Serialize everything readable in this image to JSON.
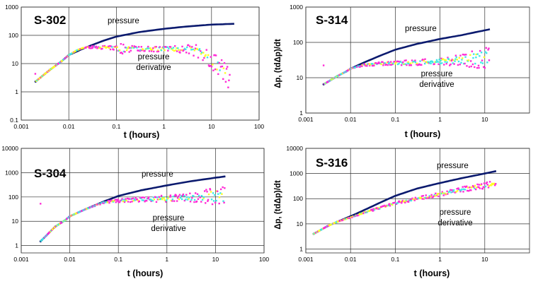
{
  "figure": {
    "colors": {
      "pressure": "#0b1a6e",
      "derivative_magenta": "#ff2bd6",
      "derivative_yellow": "#ffff22",
      "derivative_cyan": "#3ee8e8",
      "grid": "#333333"
    }
  },
  "chart_data": [
    {
      "type": "scatter",
      "title": "S-302",
      "xlabel": "t (hours)",
      "ylabel": "",
      "xscale": "log",
      "yscale": "log",
      "xlim": [
        0.001,
        100
      ],
      "ylim": [
        0.1,
        1000
      ],
      "xticks": [
        "0.001",
        "0.01",
        "0.1",
        "1",
        "10",
        "100"
      ],
      "yticks": [
        "0.1",
        "1",
        "10",
        "100",
        "1000"
      ],
      "grid": true,
      "annotations": [
        {
          "text": "pressure"
        },
        {
          "text": "pressure derivative"
        }
      ],
      "series": [
        {
          "role": "pressure",
          "color": "#0b1a6e",
          "x": [
            0.002,
            0.004,
            0.007,
            0.01,
            0.02,
            0.05,
            0.1,
            0.3,
            1,
            3,
            10,
            30
          ],
          "y": [
            2.3,
            6,
            12,
            20,
            34,
            62,
            90,
            130,
            170,
            205,
            240,
            255
          ]
        },
        {
          "role": "pressure derivative",
          "color": "#ffff22",
          "x": [
            0.002,
            0.004,
            0.007,
            0.01,
            0.015,
            0.02,
            0.03,
            0.06,
            0.1,
            0.12,
            0.3,
            1,
            3,
            5,
            8,
            12,
            16,
            20,
            25
          ],
          "y": [
            2.3,
            6,
            12,
            20,
            30,
            36,
            38,
            37,
            35,
            34,
            33,
            33,
            32,
            28,
            18,
            10,
            6,
            4,
            2
          ],
          "spread": [
            0,
            0,
            0,
            0,
            0,
            0,
            0.04,
            0.06,
            0.08,
            0.2,
            0.08,
            0.1,
            0.15,
            0.22,
            0.28,
            0.32,
            0.36,
            0.38,
            0.4
          ]
        }
      ]
    },
    {
      "type": "scatter",
      "title": "S-314",
      "xlabel": "t (hours)",
      "ylabel": "Δp, (tdΔp)/dt",
      "xscale": "log",
      "yscale": "log",
      "xlim": [
        0.001,
        100
      ],
      "ylim": [
        1,
        1000
      ],
      "xticks": [
        "0.001",
        "0.01",
        "0.1",
        "1",
        "10"
      ],
      "yticks": [
        "1",
        "10",
        "100",
        "1000"
      ],
      "grid": true,
      "annotations": [
        {
          "text": "pressure"
        },
        {
          "text": "pressure derivative"
        }
      ],
      "series": [
        {
          "role": "pressure",
          "color": "#0b1a6e",
          "x": [
            0.0025,
            0.005,
            0.008,
            0.01,
            0.02,
            0.05,
            0.1,
            0.3,
            1,
            3,
            10,
            13
          ],
          "y": [
            6.5,
            11,
            15,
            18,
            27,
            44,
            62,
            90,
            125,
            160,
            220,
            235
          ]
        },
        {
          "role": "pressure derivative",
          "color": "#3ee8e8",
          "x": [
            0.0025,
            0.005,
            0.008,
            0.01,
            0.02,
            0.05,
            0.1,
            0.3,
            1,
            2,
            3,
            5,
            8,
            10,
            13
          ],
          "y": [
            6.5,
            11,
            15,
            18,
            23,
            25,
            26,
            27,
            29,
            30,
            32,
            33,
            35,
            35,
            36
          ],
          "spread": [
            0,
            0,
            0,
            0,
            0.03,
            0.05,
            0.06,
            0.08,
            0.1,
            0.14,
            0.18,
            0.22,
            0.28,
            0.32,
            0.36
          ]
        }
      ]
    },
    {
      "type": "scatter",
      "title": "S-304",
      "xlabel": "t (hours)",
      "ylabel": "",
      "xscale": "log",
      "yscale": "log",
      "xlim": [
        0.001,
        100
      ],
      "ylim": [
        0.5,
        10000
      ],
      "xticks": [
        "0.001",
        "0.01",
        "0.1",
        "1",
        "10",
        "100"
      ],
      "yticks": [
        "1",
        "10",
        "100",
        "1000",
        "10000"
      ],
      "grid": true,
      "annotations": [
        {
          "text": "pressure"
        },
        {
          "text": "pressure derivative"
        }
      ],
      "series": [
        {
          "role": "pressure",
          "color": "#0b1a6e",
          "x": [
            0.0025,
            0.005,
            0.008,
            0.01,
            0.02,
            0.05,
            0.1,
            0.3,
            1,
            3,
            10,
            16
          ],
          "y": [
            1.5,
            6,
            11,
            16,
            30,
            65,
            110,
            190,
            300,
            440,
            620,
            700
          ]
        },
        {
          "role": "pressure derivative",
          "color": "#3ee8e8",
          "x": [
            0.0025,
            0.005,
            0.008,
            0.01,
            0.02,
            0.05,
            0.1,
            0.3,
            1,
            3,
            5,
            8,
            10,
            13,
            16
          ],
          "y": [
            1.5,
            6,
            11,
            16,
            30,
            60,
            70,
            78,
            85,
            95,
            100,
            105,
            110,
            115,
            120
          ],
          "spread": [
            0,
            0,
            0,
            0,
            0,
            0.05,
            0.06,
            0.1,
            0.15,
            0.2,
            0.28,
            0.34,
            0.38,
            0.4,
            0.42
          ]
        }
      ]
    },
    {
      "type": "scatter",
      "title": "S-316",
      "xlabel": "t (hours)",
      "ylabel": "Δp, (tdΔp)/dt",
      "xscale": "log",
      "yscale": "log",
      "xlim": [
        0.001,
        100
      ],
      "ylim": [
        0.7,
        10000
      ],
      "xticks": [
        "0.001",
        "0.01",
        "0.1",
        "1",
        "10"
      ],
      "yticks": [
        "1",
        "10",
        "100",
        "1000",
        "10000"
      ],
      "grid": true,
      "annotations": [
        {
          "text": "pressure"
        },
        {
          "text": "pressure derivative"
        }
      ],
      "series": [
        {
          "role": "pressure",
          "color": "#0b1a6e",
          "x": [
            0.0015,
            0.003,
            0.005,
            0.01,
            0.02,
            0.05,
            0.1,
            0.3,
            1,
            3,
            10,
            18
          ],
          "y": [
            4,
            8,
            12,
            20,
            35,
            75,
            130,
            250,
            420,
            650,
            1000,
            1250
          ]
        },
        {
          "role": "pressure derivative",
          "color": "#ffff22",
          "x": [
            0.0015,
            0.003,
            0.005,
            0.01,
            0.02,
            0.05,
            0.1,
            0.3,
            1,
            3,
            10,
            18
          ],
          "y": [
            4,
            8,
            12,
            18,
            28,
            45,
            65,
            100,
            150,
            230,
            330,
            400
          ],
          "spread": [
            0,
            0,
            0,
            0.02,
            0.03,
            0.04,
            0.05,
            0.06,
            0.08,
            0.1,
            0.12,
            0.14
          ]
        }
      ]
    }
  ]
}
